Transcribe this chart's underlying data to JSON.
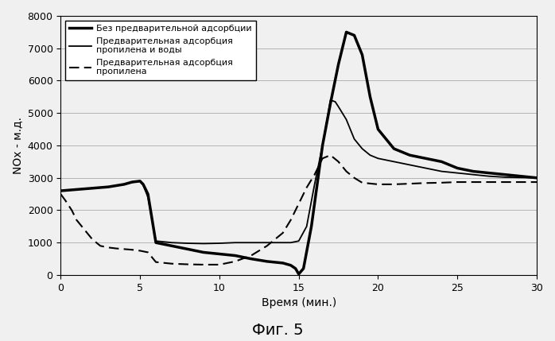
{
  "title": "Фиг. 5",
  "xlabel": "Время (мин.)",
  "ylabel": "NOх - м.д.",
  "xlim": [
    0,
    30
  ],
  "ylim": [
    0,
    8000
  ],
  "yticks": [
    0,
    1000,
    2000,
    3000,
    4000,
    5000,
    6000,
    7000,
    8000
  ],
  "xticks": [
    0,
    5,
    10,
    15,
    20,
    25,
    30
  ],
  "legend": [
    "Без предварительной адсорбции",
    "Предварительная адсорбция\nпропилена и воды",
    "Предварительная адсорбция\nпропилена"
  ],
  "line1_x": [
    0,
    0.5,
    1,
    2,
    3,
    4,
    4.5,
    5,
    5.2,
    5.5,
    6,
    7,
    8,
    9,
    10,
    11,
    12,
    13,
    14,
    14.5,
    14.8,
    15.0,
    15.3,
    15.8,
    16.5,
    17,
    17.5,
    18,
    18.5,
    19,
    19.5,
    20,
    21,
    22,
    23,
    24,
    25,
    26,
    27,
    28,
    29,
    30
  ],
  "line1_y": [
    2600,
    2620,
    2640,
    2680,
    2720,
    2800,
    2870,
    2900,
    2800,
    2500,
    1000,
    900,
    800,
    700,
    650,
    600,
    500,
    420,
    370,
    300,
    200,
    30,
    200,
    1500,
    4000,
    5300,
    6500,
    7500,
    7400,
    6800,
    5500,
    4500,
    3900,
    3700,
    3600,
    3500,
    3300,
    3200,
    3150,
    3100,
    3050,
    3000
  ],
  "line2_x": [
    0,
    0.5,
    1,
    2,
    3,
    4,
    4.5,
    5,
    5.2,
    5.5,
    6,
    7,
    8,
    9,
    10,
    11,
    12,
    13,
    14,
    14.5,
    15,
    15.5,
    16,
    16.5,
    17,
    17.3,
    17.5,
    18,
    18.5,
    19,
    19.5,
    20,
    21,
    22,
    23,
    24,
    25,
    26,
    27,
    28,
    29,
    30
  ],
  "line2_y": [
    2600,
    2620,
    2640,
    2680,
    2720,
    2800,
    2860,
    2900,
    2780,
    2400,
    1050,
    1000,
    980,
    970,
    980,
    1000,
    1000,
    1000,
    1000,
    1000,
    1050,
    1500,
    2800,
    4000,
    5400,
    5350,
    5200,
    4800,
    4200,
    3900,
    3700,
    3600,
    3500,
    3400,
    3300,
    3200,
    3150,
    3100,
    3050,
    3020,
    3010,
    3000
  ],
  "line3_x": [
    0,
    0.3,
    0.7,
    1,
    1.5,
    2,
    2.5,
    3,
    3.5,
    4,
    4.5,
    5,
    5.5,
    6,
    7,
    8,
    9,
    10,
    11,
    12,
    13,
    14,
    14.5,
    15,
    15.5,
    16,
    16.5,
    17,
    17.5,
    18,
    18.5,
    19,
    20,
    21,
    22,
    23,
    24,
    25,
    26,
    27,
    28,
    29,
    30
  ],
  "line3_y": [
    2500,
    2300,
    2000,
    1700,
    1400,
    1100,
    900,
    850,
    820,
    800,
    780,
    750,
    700,
    400,
    350,
    330,
    320,
    320,
    420,
    600,
    900,
    1300,
    1700,
    2200,
    2700,
    3100,
    3600,
    3700,
    3500,
    3200,
    3000,
    2850,
    2800,
    2800,
    2820,
    2840,
    2850,
    2870,
    2870,
    2870,
    2870,
    2870,
    2870
  ],
  "background_color": "#f0f0f0",
  "line1_color": "#000000",
  "line2_color": "#000000",
  "line3_color": "#000000"
}
